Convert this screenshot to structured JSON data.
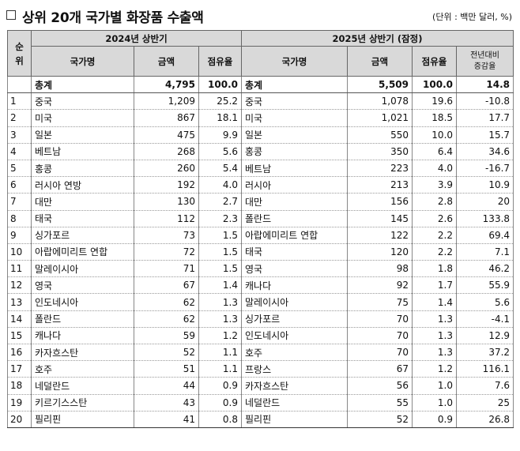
{
  "title": "상위 20개 국가별 화장품 수출액",
  "unit": "(단위 : 백만 달러, %)",
  "headers": {
    "rank": "순위",
    "rank_line1": "순",
    "rank_line2": "위",
    "period_a": "2024년 상반기",
    "period_b": "2025년 상반기 (잠정)",
    "country": "국가명",
    "amount": "금액",
    "share": "점유율",
    "yoy_line1": "전년대비",
    "yoy_line2": "증감율"
  },
  "total": {
    "label_a": "총계",
    "amount_a": "4,795",
    "share_a": "100.0",
    "label_b": "총계",
    "amount_b": "5,509",
    "share_b": "100.0",
    "yoy": "14.8"
  },
  "rows": [
    {
      "rank": "1",
      "country_a": "중국",
      "amount_a": "1,209",
      "share_a": "25.2",
      "country_b": "중국",
      "amount_b": "1,078",
      "share_b": "19.6",
      "yoy": "-10.8"
    },
    {
      "rank": "2",
      "country_a": "미국",
      "amount_a": "867",
      "share_a": "18.1",
      "country_b": "미국",
      "amount_b": "1,021",
      "share_b": "18.5",
      "yoy": "17.7"
    },
    {
      "rank": "3",
      "country_a": "일본",
      "amount_a": "475",
      "share_a": "9.9",
      "country_b": "일본",
      "amount_b": "550",
      "share_b": "10.0",
      "yoy": "15.7"
    },
    {
      "rank": "4",
      "country_a": "베트남",
      "amount_a": "268",
      "share_a": "5.6",
      "country_b": "홍콩",
      "amount_b": "350",
      "share_b": "6.4",
      "yoy": "34.6"
    },
    {
      "rank": "5",
      "country_a": "홍콩",
      "amount_a": "260",
      "share_a": "5.4",
      "country_b": "베트남",
      "amount_b": "223",
      "share_b": "4.0",
      "yoy": "-16.7"
    },
    {
      "rank": "6",
      "country_a": "러시아 연방",
      "amount_a": "192",
      "share_a": "4.0",
      "country_b": "러시아",
      "amount_b": "213",
      "share_b": "3.9",
      "yoy": "10.9"
    },
    {
      "rank": "7",
      "country_a": "대만",
      "amount_a": "130",
      "share_a": "2.7",
      "country_b": "대만",
      "amount_b": "156",
      "share_b": "2.8",
      "yoy": "20"
    },
    {
      "rank": "8",
      "country_a": "태국",
      "amount_a": "112",
      "share_a": "2.3",
      "country_b": "폴란드",
      "amount_b": "145",
      "share_b": "2.6",
      "yoy": "133.8"
    },
    {
      "rank": "9",
      "country_a": "싱가포르",
      "amount_a": "73",
      "share_a": "1.5",
      "country_b": "아랍에미리트 연합",
      "amount_b": "122",
      "share_b": "2.2",
      "yoy": "69.4"
    },
    {
      "rank": "10",
      "country_a": "아랍에미리트 연합",
      "amount_a": "72",
      "share_a": "1.5",
      "country_b": "태국",
      "amount_b": "120",
      "share_b": "2.2",
      "yoy": "7.1"
    },
    {
      "rank": "11",
      "country_a": "말레이시아",
      "amount_a": "71",
      "share_a": "1.5",
      "country_b": "영국",
      "amount_b": "98",
      "share_b": "1.8",
      "yoy": "46.2"
    },
    {
      "rank": "12",
      "country_a": "영국",
      "amount_a": "67",
      "share_a": "1.4",
      "country_b": "캐나다",
      "amount_b": "92",
      "share_b": "1.7",
      "yoy": "55.9"
    },
    {
      "rank": "13",
      "country_a": "인도네시아",
      "amount_a": "62",
      "share_a": "1.3",
      "country_b": "말레이시아",
      "amount_b": "75",
      "share_b": "1.4",
      "yoy": "5.6"
    },
    {
      "rank": "14",
      "country_a": "폴란드",
      "amount_a": "62",
      "share_a": "1.3",
      "country_b": "싱가포르",
      "amount_b": "70",
      "share_b": "1.3",
      "yoy": "-4.1"
    },
    {
      "rank": "15",
      "country_a": "캐나다",
      "amount_a": "59",
      "share_a": "1.2",
      "country_b": "인도네시아",
      "amount_b": "70",
      "share_b": "1.3",
      "yoy": "12.9"
    },
    {
      "rank": "16",
      "country_a": "카자흐스탄",
      "amount_a": "52",
      "share_a": "1.1",
      "country_b": "호주",
      "amount_b": "70",
      "share_b": "1.3",
      "yoy": "37.2"
    },
    {
      "rank": "17",
      "country_a": "호주",
      "amount_a": "51",
      "share_a": "1.1",
      "country_b": "프랑스",
      "amount_b": "67",
      "share_b": "1.2",
      "yoy": "116.1"
    },
    {
      "rank": "18",
      "country_a": "네덜란드",
      "amount_a": "44",
      "share_a": "0.9",
      "country_b": "카자흐스탄",
      "amount_b": "56",
      "share_b": "1.0",
      "yoy": "7.6"
    },
    {
      "rank": "19",
      "country_a": "키르기스스탄",
      "amount_a": "43",
      "share_a": "0.9",
      "country_b": "네덜란드",
      "amount_b": "55",
      "share_b": "1.0",
      "yoy": "25"
    },
    {
      "rank": "20",
      "country_a": "필리핀",
      "amount_a": "41",
      "share_a": "0.8",
      "country_b": "필리핀",
      "amount_b": "52",
      "share_b": "0.9",
      "yoy": "26.8"
    }
  ]
}
